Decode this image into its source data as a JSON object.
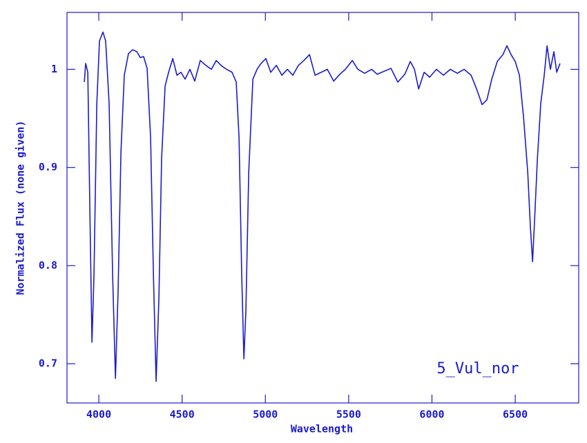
{
  "chart_data": {
    "type": "line",
    "xlabel": "Wavelength",
    "ylabel": "Normalized Flux (none given)",
    "annotation": "5_Vul_nor",
    "color": "#1a1acc",
    "xlim": [
      3809,
      6881
    ],
    "ylim": [
      0.66,
      1.058
    ],
    "xticks": [
      4000,
      4500,
      5000,
      5500,
      6000,
      6500
    ],
    "yticks": [
      0.7,
      0.8,
      0.9,
      1
    ],
    "grid": false,
    "x": [
      3913,
      3921,
      3934,
      3946,
      3959,
      3971,
      3988,
      4004,
      4025,
      4041,
      4062,
      4083,
      4100,
      4116,
      4133,
      4153,
      4178,
      4203,
      4228,
      4249,
      4269,
      4290,
      4311,
      4328,
      4344,
      4361,
      4377,
      4398,
      4419,
      4444,
      4469,
      4493,
      4518,
      4547,
      4576,
      4609,
      4643,
      4676,
      4705,
      4734,
      4767,
      4800,
      4825,
      4842,
      4858,
      4871,
      4883,
      4900,
      4925,
      4950,
      4974,
      5003,
      5032,
      5066,
      5099,
      5132,
      5165,
      5198,
      5231,
      5265,
      5298,
      5335,
      5372,
      5410,
      5447,
      5480,
      5522,
      5555,
      5596,
      5638,
      5671,
      5712,
      5754,
      5795,
      5837,
      5870,
      5895,
      5920,
      5953,
      5986,
      6027,
      6069,
      6110,
      6152,
      6193,
      6235,
      6268,
      6301,
      6330,
      6359,
      6392,
      6426,
      6450,
      6475,
      6500,
      6525,
      6550,
      6575,
      6591,
      6604,
      6616,
      6633,
      6653,
      6674,
      6691,
      6711,
      6732,
      6749,
      6769
    ],
    "values": [
      0.987,
      1.006,
      0.997,
      0.86,
      0.722,
      0.79,
      0.965,
      1.029,
      1.038,
      1.029,
      0.965,
      0.79,
      0.685,
      0.775,
      0.916,
      0.994,
      1.016,
      1.02,
      1.018,
      1.012,
      1.013,
      1.001,
      0.93,
      0.79,
      0.682,
      0.768,
      0.909,
      0.983,
      0.997,
      1.011,
      0.994,
      0.997,
      0.99,
      1.0,
      0.988,
      1.009,
      1.004,
      1.0,
      1.009,
      1.004,
      1.0,
      0.997,
      0.987,
      0.93,
      0.79,
      0.705,
      0.754,
      0.895,
      0.99,
      1.0,
      1.006,
      1.011,
      0.997,
      1.004,
      0.994,
      1.0,
      0.994,
      1.004,
      1.009,
      1.015,
      0.994,
      0.997,
      1.0,
      0.988,
      0.995,
      1.0,
      1.009,
      1.0,
      0.996,
      1.0,
      0.995,
      0.998,
      1.001,
      0.987,
      0.995,
      1.008,
      1.0,
      0.98,
      0.997,
      0.992,
      1.0,
      0.994,
      1.0,
      0.996,
      1.0,
      0.994,
      0.98,
      0.964,
      0.969,
      0.99,
      1.008,
      1.015,
      1.024,
      1.015,
      1.008,
      0.994,
      0.951,
      0.895,
      0.839,
      0.804,
      0.846,
      0.909,
      0.965,
      0.994,
      1.024,
      1.0,
      1.018,
      0.997,
      1.006
    ]
  }
}
